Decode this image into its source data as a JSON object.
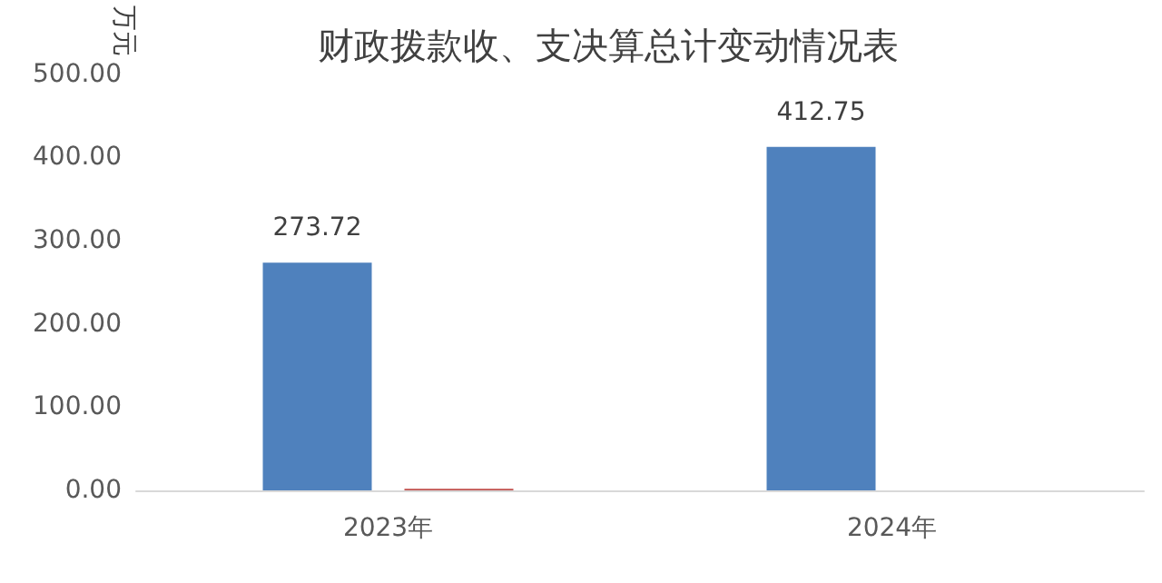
{
  "chart_data": {
    "type": "bar",
    "title": "财政拨款收、支决算总计变动情况表",
    "ylabel": "万元",
    "categories": [
      "2023年",
      "2024年"
    ],
    "series": [
      {
        "color": "#4f81bd",
        "values": [
          273.72,
          412.75
        ],
        "value_labels": [
          "273.72",
          "412.75"
        ]
      },
      {
        "color": "#c0504d",
        "values": [
          2,
          null
        ]
      }
    ],
    "ylim": [
      0,
      500
    ],
    "yticks": [
      {
        "value": 0,
        "label": "0.00"
      },
      {
        "value": 100,
        "label": "100.00"
      },
      {
        "value": 200,
        "label": "200.00"
      },
      {
        "value": 300,
        "label": "300.00"
      },
      {
        "value": 400,
        "label": "400.00"
      },
      {
        "value": 500,
        "label": "500.00"
      }
    ],
    "grid": false
  }
}
